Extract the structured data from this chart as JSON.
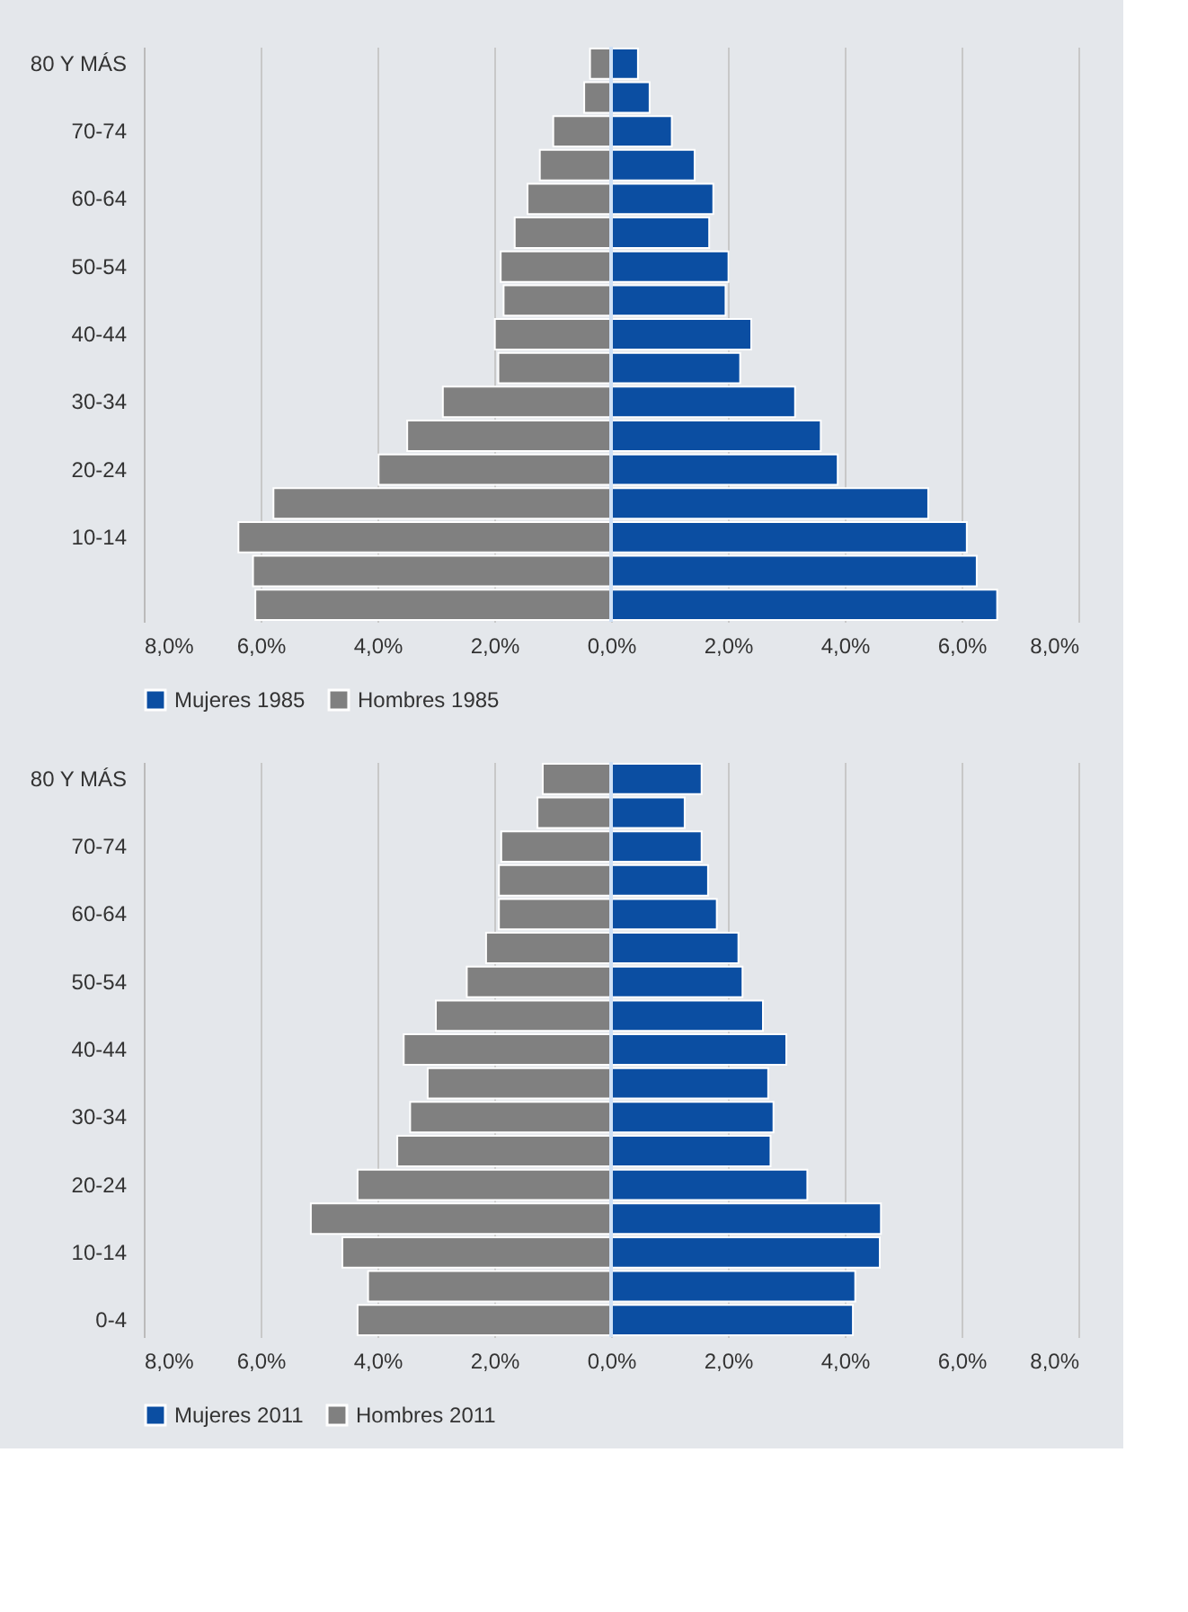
{
  "chart_data": [
    {
      "type": "bar",
      "orientation": "horizontal",
      "categories": [
        "80 Y MÁS",
        null,
        "70-74",
        null,
        "60-64",
        null,
        "50-54",
        null,
        "40-44",
        null,
        "30-34",
        null,
        "20-24",
        null,
        "10-14",
        null,
        null
      ],
      "series": [
        {
          "name": "Mujeres 1985",
          "color": "#0b4ea2",
          "values": [
            0.46,
            0.66,
            1.04,
            1.43,
            1.75,
            1.68,
            2.01,
            1.96,
            2.4,
            2.21,
            3.15,
            3.59,
            3.88,
            5.43,
            6.09,
            6.26,
            6.61
          ]
        },
        {
          "name": "Hombres 1985",
          "color": "#808080",
          "values": [
            -0.36,
            -0.46,
            -0.99,
            -1.22,
            -1.43,
            -1.65,
            -1.89,
            -1.84,
            -1.99,
            -1.93,
            -2.88,
            -3.49,
            -3.98,
            -5.78,
            -6.38,
            -6.13,
            -6.09
          ]
        }
      ],
      "xlim": [
        -8,
        8
      ],
      "xticks": [
        {
          "value": -8,
          "label": "8,0%"
        },
        {
          "value": -6,
          "label": "6,0%"
        },
        {
          "value": -4,
          "label": "4,0%"
        },
        {
          "value": -2,
          "label": "2,0%"
        },
        {
          "value": 0,
          "label": "0,0%"
        },
        {
          "value": 2,
          "label": "2,0%"
        },
        {
          "value": 4,
          "label": "4,0%"
        },
        {
          "value": 6,
          "label": "6,0%"
        },
        {
          "value": 8,
          "label": "8,0%"
        }
      ],
      "grid": "x",
      "legend": "bottom",
      "stacked": true
    },
    {
      "type": "bar",
      "orientation": "horizontal",
      "categories": [
        "80 Y MÁS",
        null,
        "70-74",
        null,
        "60-64",
        null,
        "50-54",
        null,
        "40-44",
        null,
        "30-34",
        null,
        "20-24",
        null,
        "10-14",
        null,
        "0-4"
      ],
      "series": [
        {
          "name": "Mujeres 2011",
          "color": "#0b4ea2",
          "values": [
            1.55,
            1.26,
            1.55,
            1.66,
            1.81,
            2.18,
            2.25,
            2.6,
            3.0,
            2.69,
            2.78,
            2.73,
            3.36,
            4.62,
            4.6,
            4.18,
            4.14
          ]
        },
        {
          "name": "Hombres 2011",
          "color": "#808080",
          "values": [
            -1.17,
            -1.26,
            -1.88,
            -1.92,
            -1.92,
            -2.14,
            -2.47,
            -3.0,
            -3.55,
            -3.14,
            -3.44,
            -3.66,
            -4.34,
            -5.14,
            -4.6,
            -4.16,
            -4.34
          ]
        }
      ],
      "xlim": [
        -8,
        8
      ],
      "xticks": [
        {
          "value": -8,
          "label": "8,0%"
        },
        {
          "value": -6,
          "label": "6,0%"
        },
        {
          "value": -4,
          "label": "4,0%"
        },
        {
          "value": -2,
          "label": "2,0%"
        },
        {
          "value": 0,
          "label": "0,0%"
        },
        {
          "value": 2,
          "label": "2,0%"
        },
        {
          "value": 4,
          "label": "4,0%"
        },
        {
          "value": 6,
          "label": "6,0%"
        },
        {
          "value": 8,
          "label": "8,0%"
        }
      ],
      "grid": "x",
      "legend": "bottom",
      "stacked": true
    }
  ]
}
